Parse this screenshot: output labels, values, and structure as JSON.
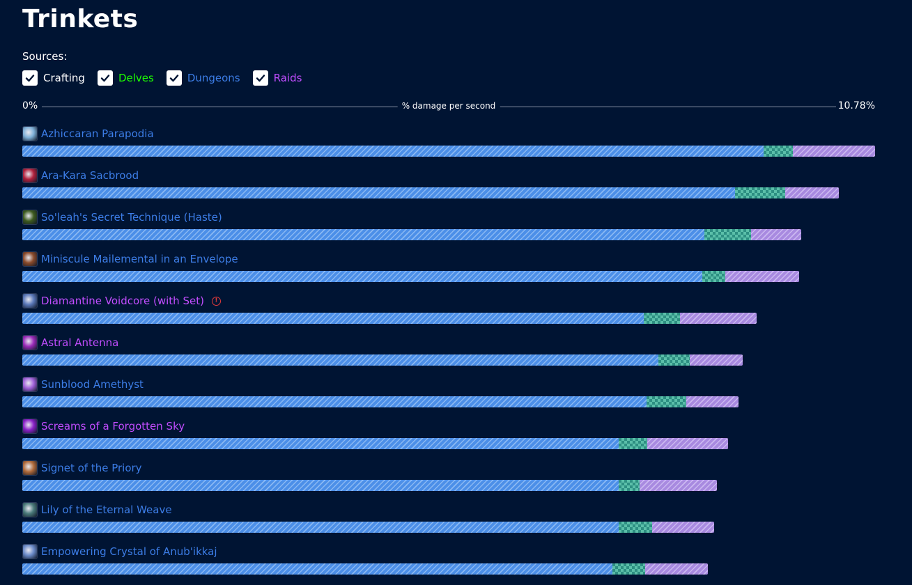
{
  "page": {
    "title": "Trinkets"
  },
  "sources": {
    "label": "Sources:",
    "filters": [
      {
        "label": "Crafting",
        "color": "#ffffff",
        "checked": true
      },
      {
        "label": "Delves",
        "color": "#1eff00",
        "checked": true
      },
      {
        "label": "Dungeons",
        "color": "#3c7de6",
        "checked": true
      },
      {
        "label": "Raids",
        "color": "#c14dff",
        "checked": true
      }
    ]
  },
  "chart_data": {
    "type": "bar",
    "orientation": "horizontal",
    "stacked": true,
    "axis": {
      "min_label": "0%",
      "max_label": "10.78%",
      "label": "% damage per second",
      "range": [
        0,
        10.78
      ]
    },
    "segment_colors": {
      "base": "#4c8fe8",
      "mid": "#2d8f82",
      "top": "#a88ae0"
    },
    "items": [
      {
        "name": "Azhiccaran Parapodia",
        "color": "#3c7de6",
        "icon": "azhiccaran-icon",
        "icon_color": "#7fb0d8",
        "segments": [
          9.37,
          0.37,
          1.04
        ],
        "total": 10.78
      },
      {
        "name": "Ara-Kara Sacbrood",
        "color": "#3c7de6",
        "icon": "sacbrood-icon",
        "icon_color": "#b0203c",
        "segments": [
          9.01,
          0.63,
          0.68
        ],
        "total": 10.32
      },
      {
        "name": "So'leah's Secret Technique (Haste)",
        "color": "#3c7de6",
        "icon": "technique-icon",
        "icon_color": "#3d5a1e",
        "segments": [
          8.62,
          0.59,
          0.64
        ],
        "total": 9.85
      },
      {
        "name": "Miniscule Mailemental in an Envelope",
        "color": "#3c7de6",
        "icon": "envelope-icon",
        "icon_color": "#8a4a2a",
        "segments": [
          8.6,
          0.29,
          0.93
        ],
        "total": 9.82
      },
      {
        "name": "Diamantine Voidcore (with Set)",
        "color": "#c14dff",
        "icon": "voidcore-icon",
        "icon_color": "#5a78b8",
        "warning": true,
        "segments": [
          7.86,
          0.45,
          0.97
        ],
        "total": 9.28
      },
      {
        "name": "Astral Antenna",
        "color": "#c14dff",
        "icon": "antenna-icon",
        "icon_color": "#9a2ab8",
        "segments": [
          8.04,
          0.4,
          0.67
        ],
        "total": 9.11
      },
      {
        "name": "Sunblood Amethyst",
        "color": "#3c7de6",
        "icon": "amethyst-icon",
        "icon_color": "#a060d8",
        "segments": [
          7.89,
          0.5,
          0.66
        ],
        "total": 9.05
      },
      {
        "name": "Screams of a Forgotten Sky",
        "color": "#c14dff",
        "icon": "screams-icon",
        "icon_color": "#8a20c8",
        "segments": [
          7.54,
          0.36,
          1.02
        ],
        "total": 8.92
      },
      {
        "name": "Signet of the Priory",
        "color": "#3c7de6",
        "icon": "signet-icon",
        "icon_color": "#b06a3a",
        "segments": [
          7.54,
          0.26,
          0.98
        ],
        "total": 8.78
      },
      {
        "name": "Lily of the Eternal Weave",
        "color": "#3c7de6",
        "icon": "lily-icon",
        "icon_color": "#4a7a7a",
        "segments": [
          7.54,
          0.42,
          0.79
        ],
        "total": 8.75
      },
      {
        "name": "Empowering Crystal of Anub'ikkaj",
        "color": "#3c7de6",
        "icon": "crystal-icon",
        "icon_color": "#6a8ac8",
        "segments": [
          7.46,
          0.41,
          0.8
        ],
        "total": 8.67
      }
    ]
  }
}
